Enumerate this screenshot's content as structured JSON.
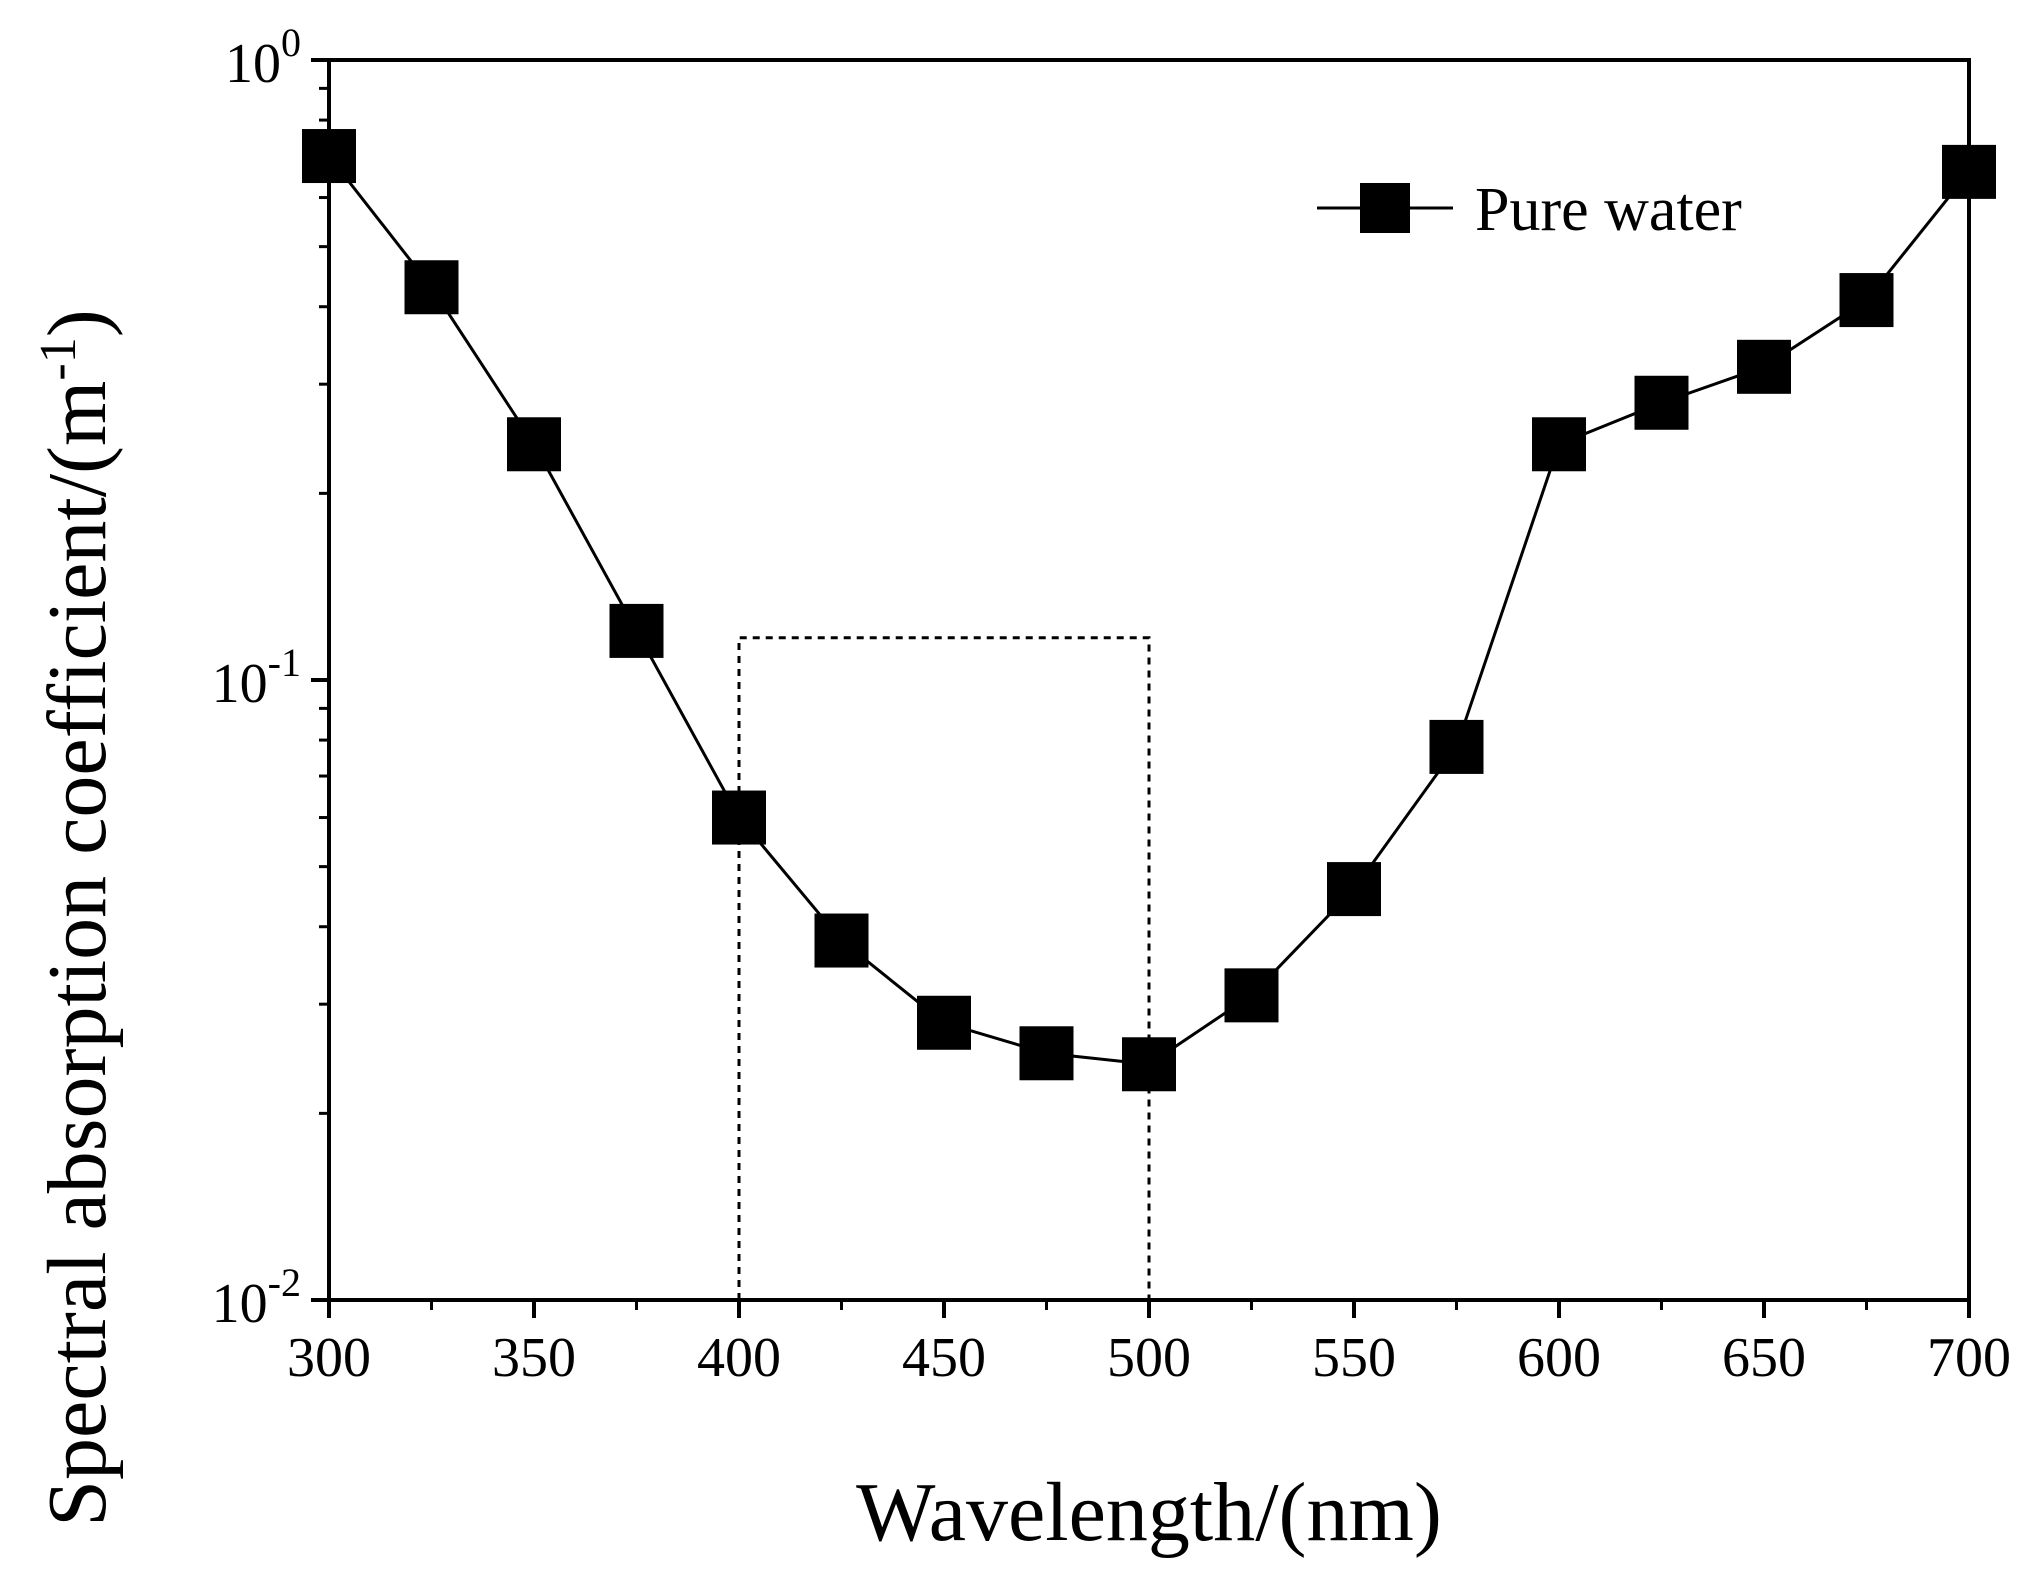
{
  "chart_data": {
    "type": "line",
    "title": "",
    "xlabel": "Wavelength/(nm)",
    "ylabel": "Spectral absorption coefficient/(m",
    "ylabel_sup": "-1",
    "ylabel_close": ")",
    "x_scale": "linear",
    "y_scale": "log",
    "xlim": [
      300,
      700
    ],
    "ylim": [
      0.01,
      1
    ],
    "x_ticks": [
      300,
      350,
      400,
      450,
      500,
      550,
      600,
      650,
      700
    ],
    "x_tick_labels": [
      "300",
      "350",
      "400",
      "450",
      "500",
      "550",
      "600",
      "650",
      "700"
    ],
    "y_ticks": [
      {
        "value": 0.01,
        "base": "10",
        "exp": "-2"
      },
      {
        "value": 0.1,
        "base": "10",
        "exp": "-1"
      },
      {
        "value": 1,
        "base": "10",
        "exp": "0"
      }
    ],
    "legend_position": "top-right",
    "series": [
      {
        "name": "Pure water",
        "marker": "square",
        "color": "#000000",
        "x": [
          300,
          325,
          350,
          375,
          400,
          425,
          450,
          475,
          500,
          525,
          550,
          575,
          600,
          625,
          650,
          675,
          700
        ],
        "values": [
          0.7,
          0.43,
          0.24,
          0.12,
          0.06,
          0.038,
          0.028,
          0.025,
          0.024,
          0.031,
          0.046,
          0.078,
          0.24,
          0.28,
          0.32,
          0.41,
          0.66
        ]
      }
    ],
    "annotation_box": {
      "x_range": [
        400,
        500
      ],
      "y_top": 0.117,
      "style": "dotted"
    }
  }
}
